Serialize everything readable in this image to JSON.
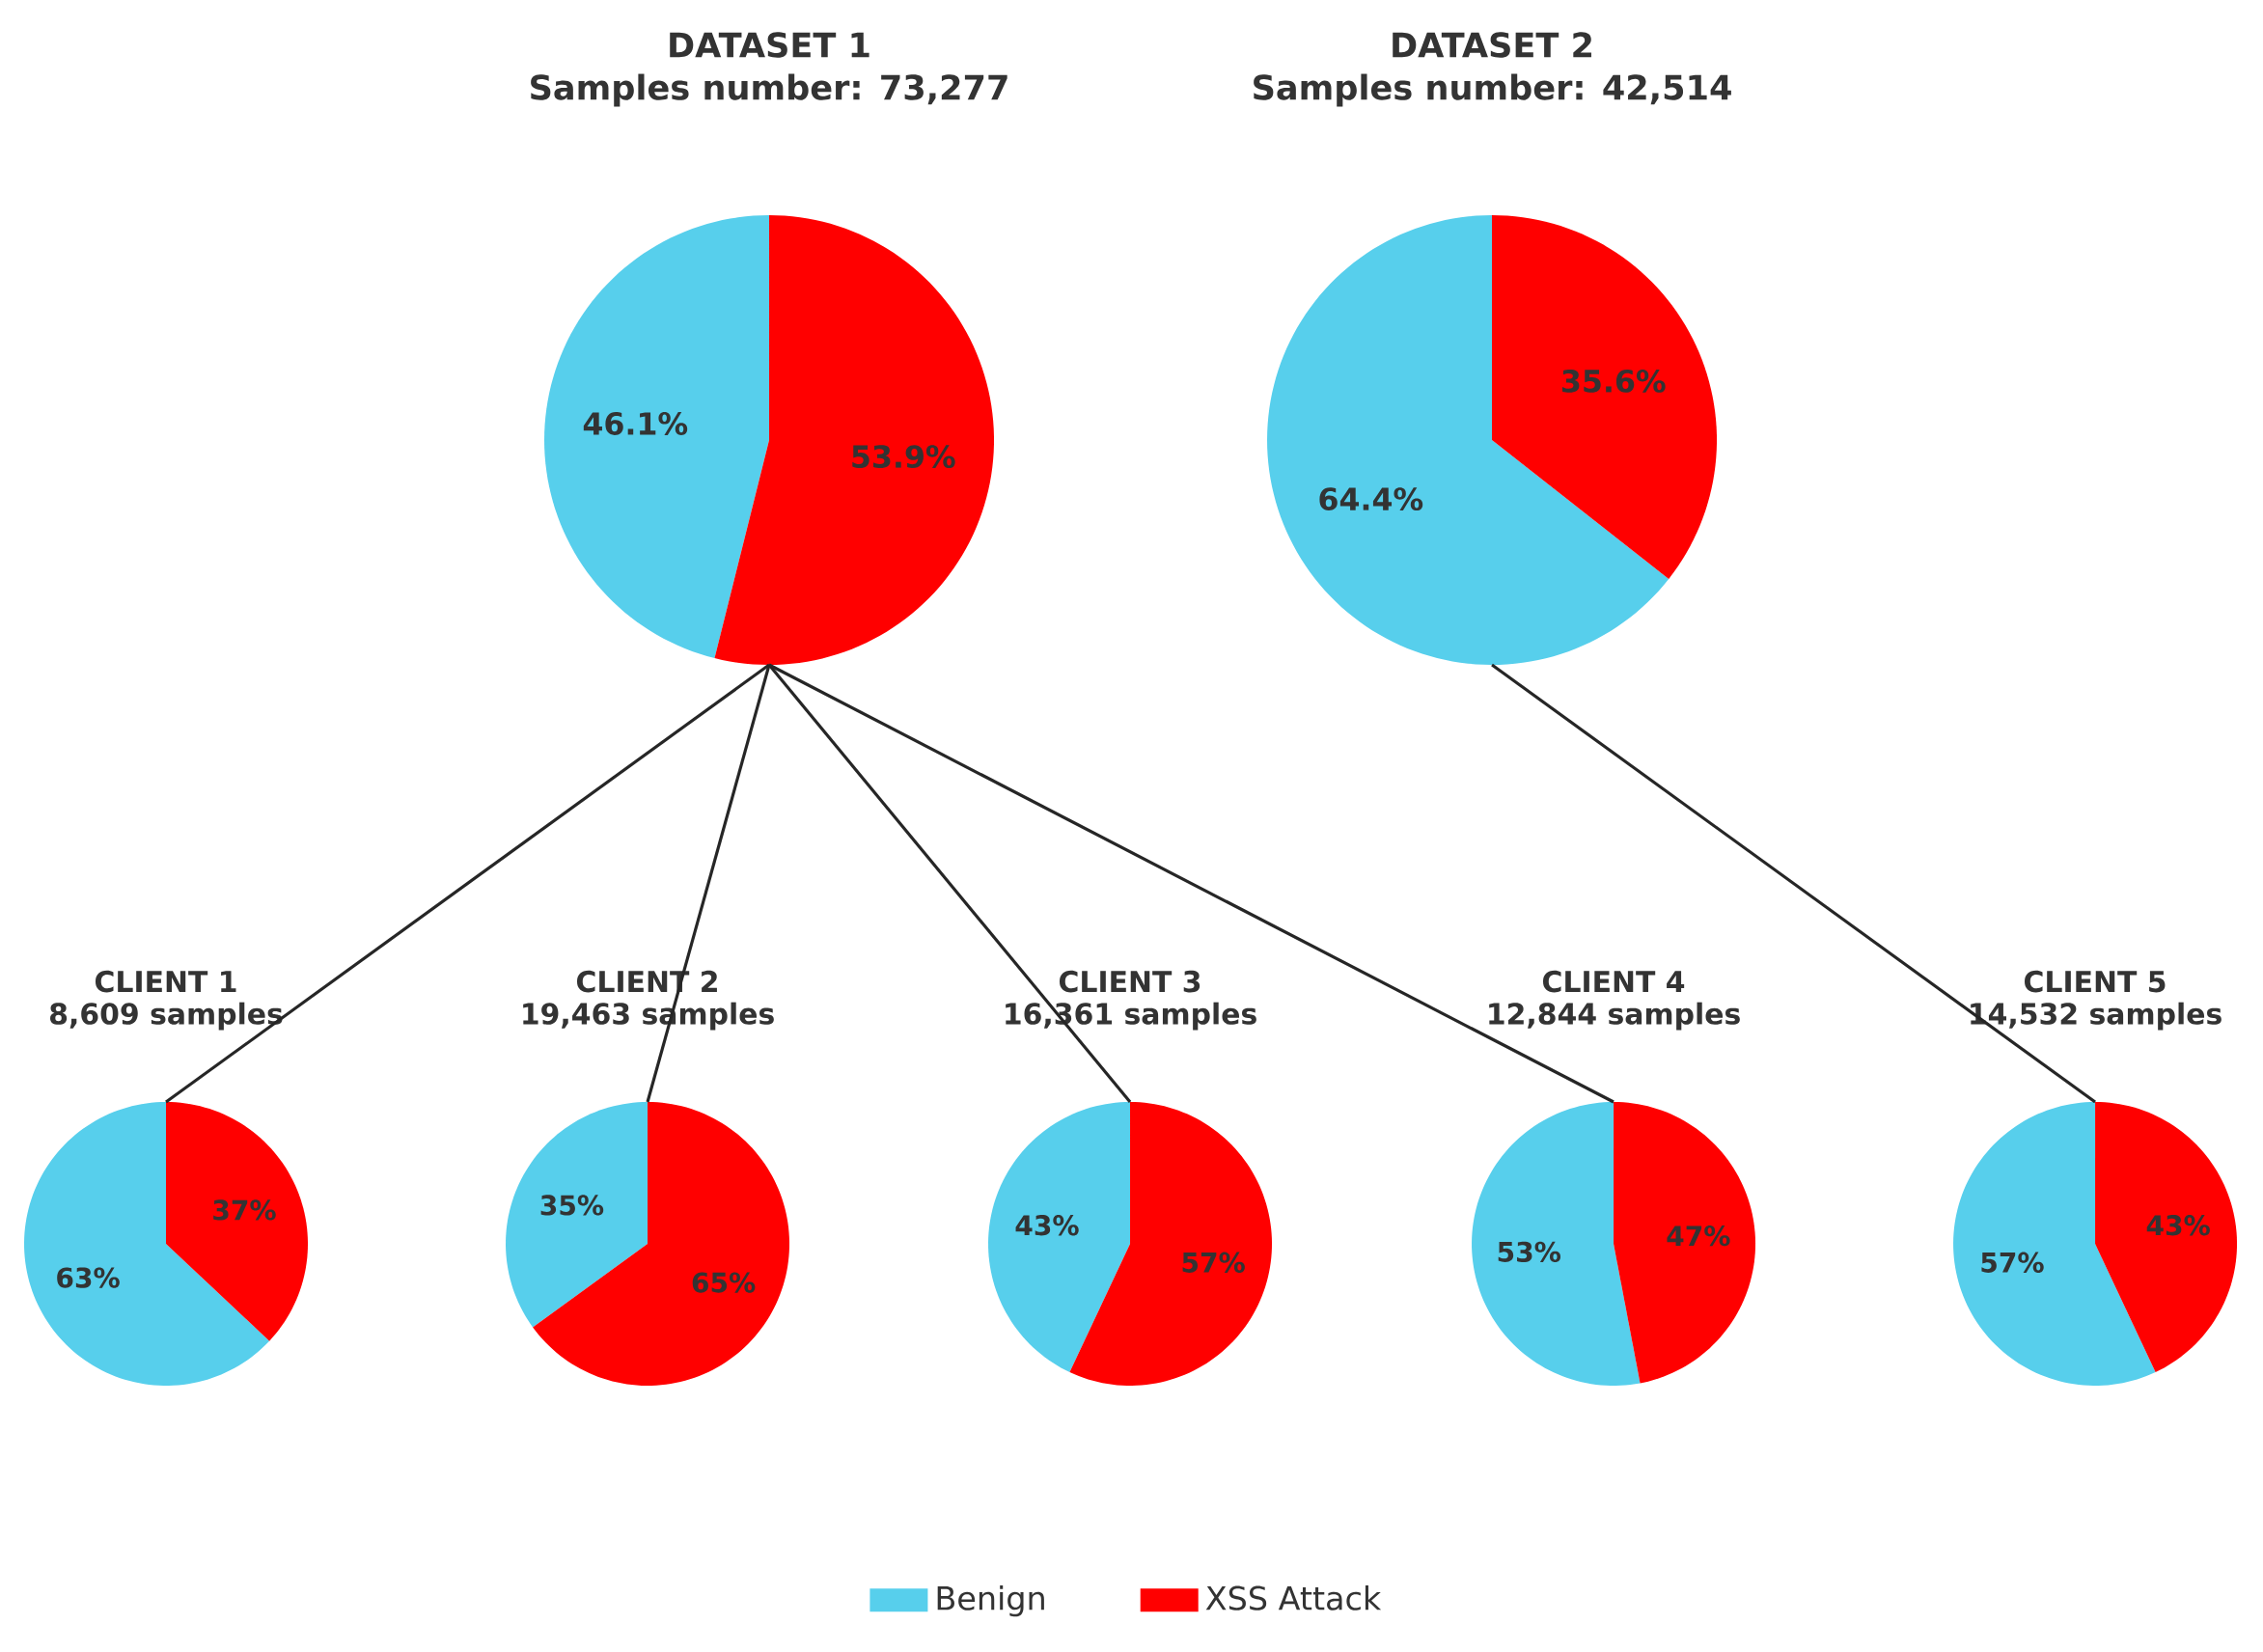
{
  "chart_data": [
    {
      "type": "pie",
      "title": "DATASET 1",
      "subtitle": "Samples number: 73,277",
      "categories": [
        "Benign",
        "XSS Attack"
      ],
      "values": [
        46.1,
        53.9
      ],
      "colors": [
        "#57cfec",
        "#ff0000"
      ],
      "value_labels": [
        "46.1%",
        "53.9%"
      ],
      "legend": "bottom"
    },
    {
      "type": "pie",
      "title": "DATASET 2",
      "subtitle": "Samples number: 42,514",
      "categories": [
        null,
        null
      ],
      "values": [
        64.4,
        35.6
      ],
      "colors": [
        "#57cfec",
        "#ff0000"
      ],
      "value_labels": [
        "64.4%",
        "35.6%"
      ]
    },
    {
      "type": "pie",
      "title": "CLIENT 1",
      "subtitle": "8,609 samples",
      "categories": [
        null,
        null
      ],
      "values": [
        63,
        37
      ],
      "colors": [
        "#57cfec",
        "#ff0000"
      ],
      "value_labels": [
        "63%",
        "37%"
      ]
    },
    {
      "type": "pie",
      "title": "CLIENT 2",
      "subtitle": "19,463 samples",
      "categories": [
        null,
        null
      ],
      "values": [
        35,
        65
      ],
      "colors": [
        "#57cfec",
        "#ff0000"
      ],
      "value_labels": [
        "35%",
        "65%"
      ]
    },
    {
      "type": "pie",
      "title": "CLIENT 3",
      "subtitle": "16,361 samples",
      "categories": [
        null,
        null
      ],
      "values": [
        43,
        57
      ],
      "colors": [
        "#57cfec",
        "#ff0000"
      ],
      "value_labels": [
        "43%",
        "57%"
      ]
    },
    {
      "type": "pie",
      "title": "CLIENT 4",
      "subtitle": "12,844 samples",
      "categories": [
        null,
        null
      ],
      "values": [
        53,
        47
      ],
      "colors": [
        "#57cfec",
        "#ff0000"
      ],
      "value_labels": [
        "53%",
        "47%"
      ]
    },
    {
      "type": "pie",
      "title": "CLIENT 5",
      "subtitle": "14,532 samples",
      "categories": [
        null,
        null
      ],
      "values": [
        57,
        43
      ],
      "colors": [
        "#57cfec",
        "#ff0000"
      ],
      "value_labels": [
        "57%",
        "43%"
      ]
    }
  ]
}
